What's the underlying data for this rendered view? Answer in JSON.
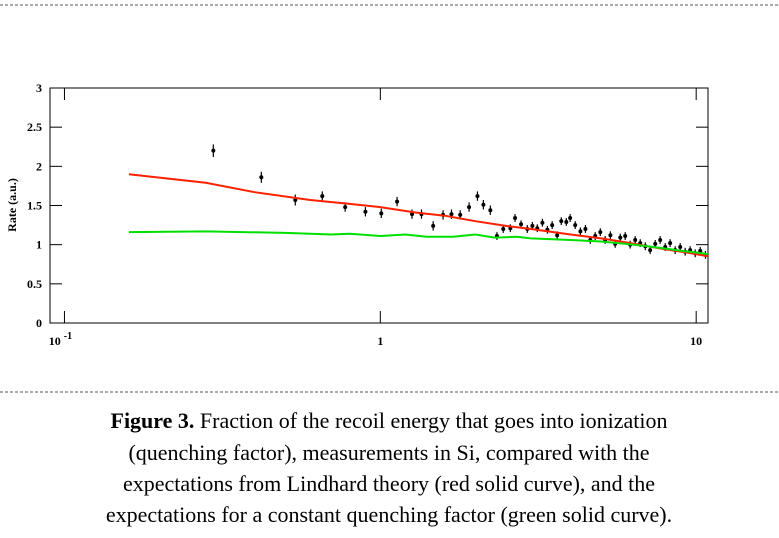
{
  "chart_data": {
    "type": "scatter",
    "ylabel": "Rate (a.u.)",
    "xlog": true,
    "xlim": [
      0.09,
      10.9
    ],
    "ylim": [
      0,
      3
    ],
    "xticks": [
      {
        "value": 0.1,
        "label": "10",
        "exponent": "-1"
      },
      1,
      10
    ],
    "yticks": [
      0,
      0.5,
      1,
      1.5,
      2,
      2.5,
      3
    ],
    "series": [
      {
        "type": "scatter",
        "color": "#000000",
        "x": [
          0.296,
          0.42,
          0.538,
          0.655,
          0.774,
          0.897,
          1.007,
          1.13,
          1.26,
          1.35,
          1.47,
          1.58,
          1.68,
          1.79,
          1.91,
          2.03,
          2.12,
          2.23,
          2.34,
          2.45,
          2.58,
          2.67,
          2.79,
          2.92,
          3.03,
          3.14,
          3.26,
          3.38,
          3.5,
          3.63,
          3.74,
          3.88,
          3.99,
          4.14,
          4.3,
          4.46,
          4.62,
          4.79,
          4.97,
          5.15,
          5.35,
          5.54,
          5.75,
          5.96,
          6.18,
          6.41,
          6.65,
          6.9,
          7.15,
          7.42,
          7.69,
          7.98,
          8.27,
          8.58,
          8.9,
          9.23,
          9.57,
          9.93,
          10.3,
          10.7
        ],
        "values": [
          2.2,
          1.86,
          1.57,
          1.62,
          1.48,
          1.42,
          1.4,
          1.55,
          1.39,
          1.39,
          1.24,
          1.38,
          1.39,
          1.38,
          1.48,
          1.62,
          1.51,
          1.44,
          1.11,
          1.2,
          1.21,
          1.34,
          1.26,
          1.2,
          1.24,
          1.21,
          1.28,
          1.19,
          1.25,
          1.12,
          1.3,
          1.29,
          1.34,
          1.25,
          1.17,
          1.2,
          1.06,
          1.11,
          1.16,
          1.06,
          1.12,
          1.01,
          1.09,
          1.11,
          1.0,
          1.06,
          1.02,
          0.98,
          0.93,
          1.01,
          1.06,
          0.97,
          1.02,
          0.93,
          0.97,
          0.91,
          0.93,
          0.89,
          0.92,
          0.87
        ],
        "errors": [
          0.08,
          0.07,
          0.07,
          0.06,
          0.06,
          0.06,
          0.06,
          0.06,
          0.06,
          0.06,
          0.06,
          0.06,
          0.06,
          0.06,
          0.06,
          0.06,
          0.06,
          0.06,
          0.05,
          0.05,
          0.05,
          0.05,
          0.05,
          0.05,
          0.05,
          0.05,
          0.05,
          0.05,
          0.05,
          0.05,
          0.05,
          0.05,
          0.05,
          0.05,
          0.05,
          0.05,
          0.05,
          0.05,
          0.05,
          0.05,
          0.05,
          0.05,
          0.05,
          0.05,
          0.05,
          0.05,
          0.05,
          0.05,
          0.05,
          0.05,
          0.05,
          0.05,
          0.05,
          0.05,
          0.05,
          0.05,
          0.05,
          0.05,
          0.05,
          0.05
        ]
      },
      {
        "type": "line",
        "color": "#ff2000",
        "x": [
          0.16,
          0.28,
          0.4,
          0.6,
          0.8,
          1.0,
          1.3,
          1.6,
          2.0,
          2.5,
          3,
          4,
          5,
          6,
          7,
          8,
          9,
          10,
          10.9
        ],
        "values": [
          1.9,
          1.79,
          1.67,
          1.57,
          1.52,
          1.48,
          1.41,
          1.37,
          1.3,
          1.24,
          1.2,
          1.13,
          1.08,
          1.03,
          0.98,
          0.94,
          0.91,
          0.88,
          0.85
        ]
      },
      {
        "type": "line",
        "color": "#00e000",
        "x": [
          0.16,
          0.28,
          0.5,
          0.7,
          0.8,
          1.0,
          1.2,
          1.4,
          1.7,
          2.0,
          2.3,
          2.7,
          3,
          4,
          5,
          6,
          7,
          8,
          9,
          10,
          10.9
        ],
        "values": [
          1.16,
          1.17,
          1.15,
          1.13,
          1.14,
          1.11,
          1.13,
          1.1,
          1.1,
          1.13,
          1.09,
          1.1,
          1.08,
          1.06,
          1.04,
          1.01,
          0.98,
          0.95,
          0.92,
          0.9,
          0.88
        ]
      }
    ]
  },
  "caption": {
    "label": "Figure 3.",
    "lines": [
      " Fraction of the recoil energy that goes into ionization",
      "(quenching factor), measurements in Si, compared with the",
      "expectations from Lindhard theory (red solid curve), and the",
      "expectations for a constant quenching factor (green solid curve)."
    ]
  }
}
